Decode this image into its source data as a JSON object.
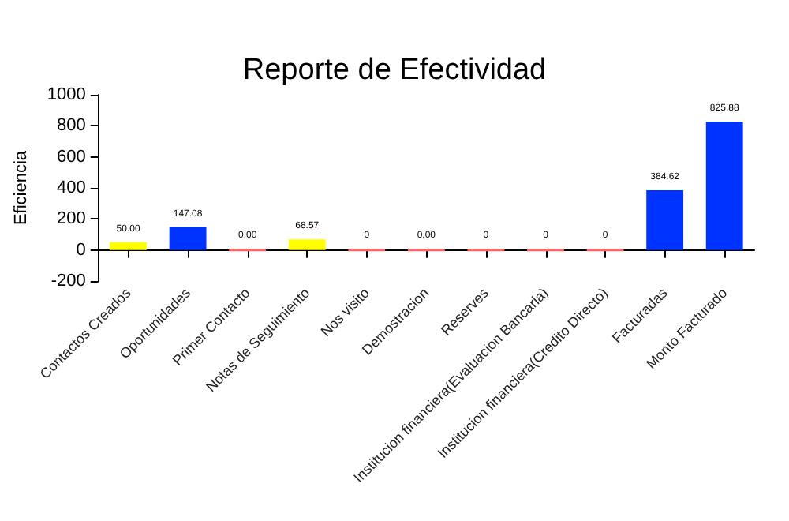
{
  "chart_data": {
    "type": "bar",
    "title": "Reporte de Efectividad",
    "ylabel": "Eficiencia",
    "categories": [
      "Contactos Creados",
      "Oportunidades",
      "Primer Contacto",
      "Notas de Seguimiento",
      "Nos visito",
      "Demostracion",
      "Reserves",
      "Institucion financiera(Evaluacion Bancaria)",
      "Institucion financiera(Credito Directo)",
      "Facturadas",
      "Monto Facturado"
    ],
    "values": [
      50,
      147.08,
      0,
      68.57,
      0,
      0,
      0,
      0,
      0,
      384.62,
      825.88
    ],
    "value_labels": [
      "50.00",
      "147.08",
      "0.00",
      "68.57",
      "0",
      "0.00",
      "0",
      "0",
      "0",
      "384.62",
      "825.88"
    ],
    "colors": [
      "#ffff00",
      "#0033ff",
      "#ff6666",
      "#ffff00",
      "#ff6666",
      "#ff6666",
      "#ff6666",
      "#ff6666",
      "#ff6666",
      "#0033ff",
      "#0033ff"
    ],
    "ylim": [
      -200,
      1000
    ],
    "yticks": [
      -200,
      0,
      200,
      400,
      600,
      800,
      1000
    ],
    "grid": false
  }
}
